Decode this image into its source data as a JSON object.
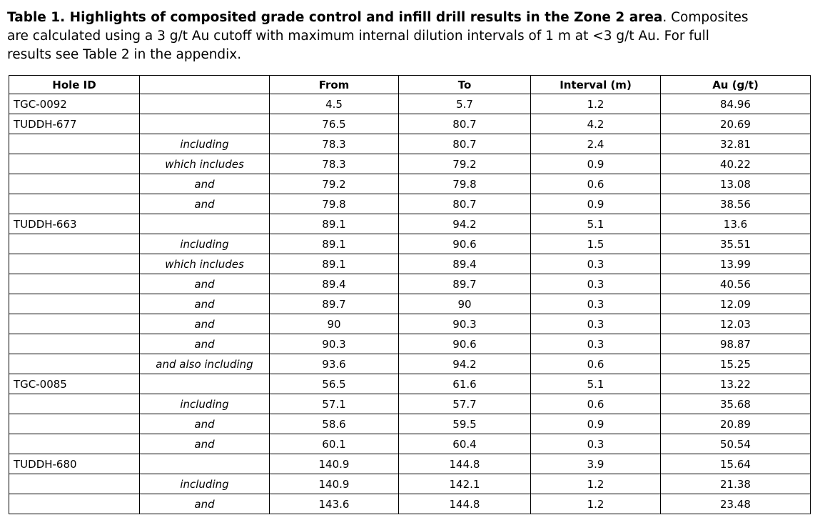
{
  "caption": {
    "line1_bold": "Table 1. Highlights of composited grade control and infill drill results in the Zone 2 area",
    "line1_rest": ". Composites",
    "line2": "are calculated using a 3 g/t Au cutoff with maximum internal dilution intervals of 1 m at <3 g/t Au. For full",
    "line3": "results see Table 2 in the appendix."
  },
  "table": {
    "columns": [
      "Hole ID",
      "",
      "From",
      "To",
      "Interval (m)",
      "Au (g/t)"
    ],
    "rows": [
      {
        "hole_id": "TGC-0092",
        "qualifier": "",
        "from": "4.5",
        "to": "5.7",
        "interval": "1.2",
        "au": "84.96"
      },
      {
        "hole_id": "TUDDH-677",
        "qualifier": "",
        "from": "76.5",
        "to": "80.7",
        "interval": "4.2",
        "au": "20.69"
      },
      {
        "hole_id": "",
        "qualifier": "including",
        "from": "78.3",
        "to": "80.7",
        "interval": "2.4",
        "au": "32.81"
      },
      {
        "hole_id": "",
        "qualifier": "which includes",
        "from": "78.3",
        "to": "79.2",
        "interval": "0.9",
        "au": "40.22"
      },
      {
        "hole_id": "",
        "qualifier": "and",
        "from": "79.2",
        "to": "79.8",
        "interval": "0.6",
        "au": "13.08"
      },
      {
        "hole_id": "",
        "qualifier": "and",
        "from": "79.8",
        "to": "80.7",
        "interval": "0.9",
        "au": "38.56"
      },
      {
        "hole_id": "TUDDH-663",
        "qualifier": "",
        "from": "89.1",
        "to": "94.2",
        "interval": "5.1",
        "au": "13.6"
      },
      {
        "hole_id": "",
        "qualifier": "including",
        "from": "89.1",
        "to": "90.6",
        "interval": "1.5",
        "au": "35.51"
      },
      {
        "hole_id": "",
        "qualifier": "which includes",
        "from": "89.1",
        "to": "89.4",
        "interval": "0.3",
        "au": "13.99"
      },
      {
        "hole_id": "",
        "qualifier": "and",
        "from": "89.4",
        "to": "89.7",
        "interval": "0.3",
        "au": "40.56"
      },
      {
        "hole_id": "",
        "qualifier": "and",
        "from": "89.7",
        "to": "90",
        "interval": "0.3",
        "au": "12.09"
      },
      {
        "hole_id": "",
        "qualifier": "and",
        "from": "90",
        "to": "90.3",
        "interval": "0.3",
        "au": "12.03"
      },
      {
        "hole_id": "",
        "qualifier": "and",
        "from": "90.3",
        "to": "90.6",
        "interval": "0.3",
        "au": "98.87"
      },
      {
        "hole_id": "",
        "qualifier": "and also including",
        "from": "93.6",
        "to": "94.2",
        "interval": "0.6",
        "au": "15.25"
      },
      {
        "hole_id": "TGC-0085",
        "qualifier": "",
        "from": "56.5",
        "to": "61.6",
        "interval": "5.1",
        "au": "13.22"
      },
      {
        "hole_id": "",
        "qualifier": "including",
        "from": "57.1",
        "to": "57.7",
        "interval": "0.6",
        "au": "35.68"
      },
      {
        "hole_id": "",
        "qualifier": "and",
        "from": "58.6",
        "to": "59.5",
        "interval": "0.9",
        "au": "20.89"
      },
      {
        "hole_id": "",
        "qualifier": "and",
        "from": "60.1",
        "to": "60.4",
        "interval": "0.3",
        "au": "50.54"
      },
      {
        "hole_id": "TUDDH-680",
        "qualifier": "",
        "from": "140.9",
        "to": "144.8",
        "interval": "3.9",
        "au": "15.64"
      },
      {
        "hole_id": "",
        "qualifier": "including",
        "from": "140.9",
        "to": "142.1",
        "interval": "1.2",
        "au": "21.38"
      },
      {
        "hole_id": "",
        "qualifier": "and",
        "from": "143.6",
        "to": "144.8",
        "interval": "1.2",
        "au": "23.48"
      }
    ]
  }
}
